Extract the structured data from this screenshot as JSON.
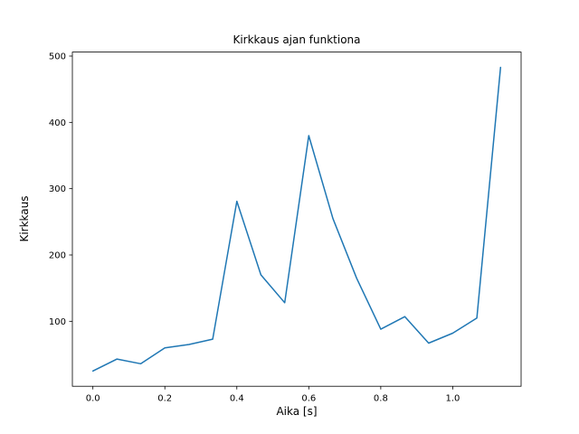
{
  "chart_data": {
    "type": "line",
    "title": "Kirkkaus ajan funktiona",
    "xlabel": "Aika [s]",
    "ylabel": "Kirkkaus",
    "x": [
      0.0,
      0.067,
      0.133,
      0.2,
      0.267,
      0.333,
      0.4,
      0.467,
      0.533,
      0.6,
      0.667,
      0.733,
      0.8,
      0.867,
      0.933,
      1.0,
      1.067,
      1.133
    ],
    "y": [
      25,
      43,
      36,
      60,
      65,
      73,
      281,
      170,
      128,
      380,
      255,
      165,
      88,
      107,
      67,
      82,
      105,
      483
    ],
    "xtick_values": [
      0.0,
      0.2,
      0.4,
      0.6,
      0.8,
      1.0
    ],
    "xtick_labels": [
      "0.0",
      "0.2",
      "0.4",
      "0.6",
      "0.8",
      "1.0"
    ],
    "ytick_values": [
      100,
      200,
      300,
      400,
      500
    ],
    "ytick_labels": [
      "100",
      "200",
      "300",
      "400",
      "500"
    ],
    "xlim": [
      -0.057,
      1.19
    ],
    "ylim": [
      2,
      506
    ],
    "line_color": "#1f77b4",
    "axis_color": "#000000",
    "background": "#ffffff",
    "grid": false
  }
}
